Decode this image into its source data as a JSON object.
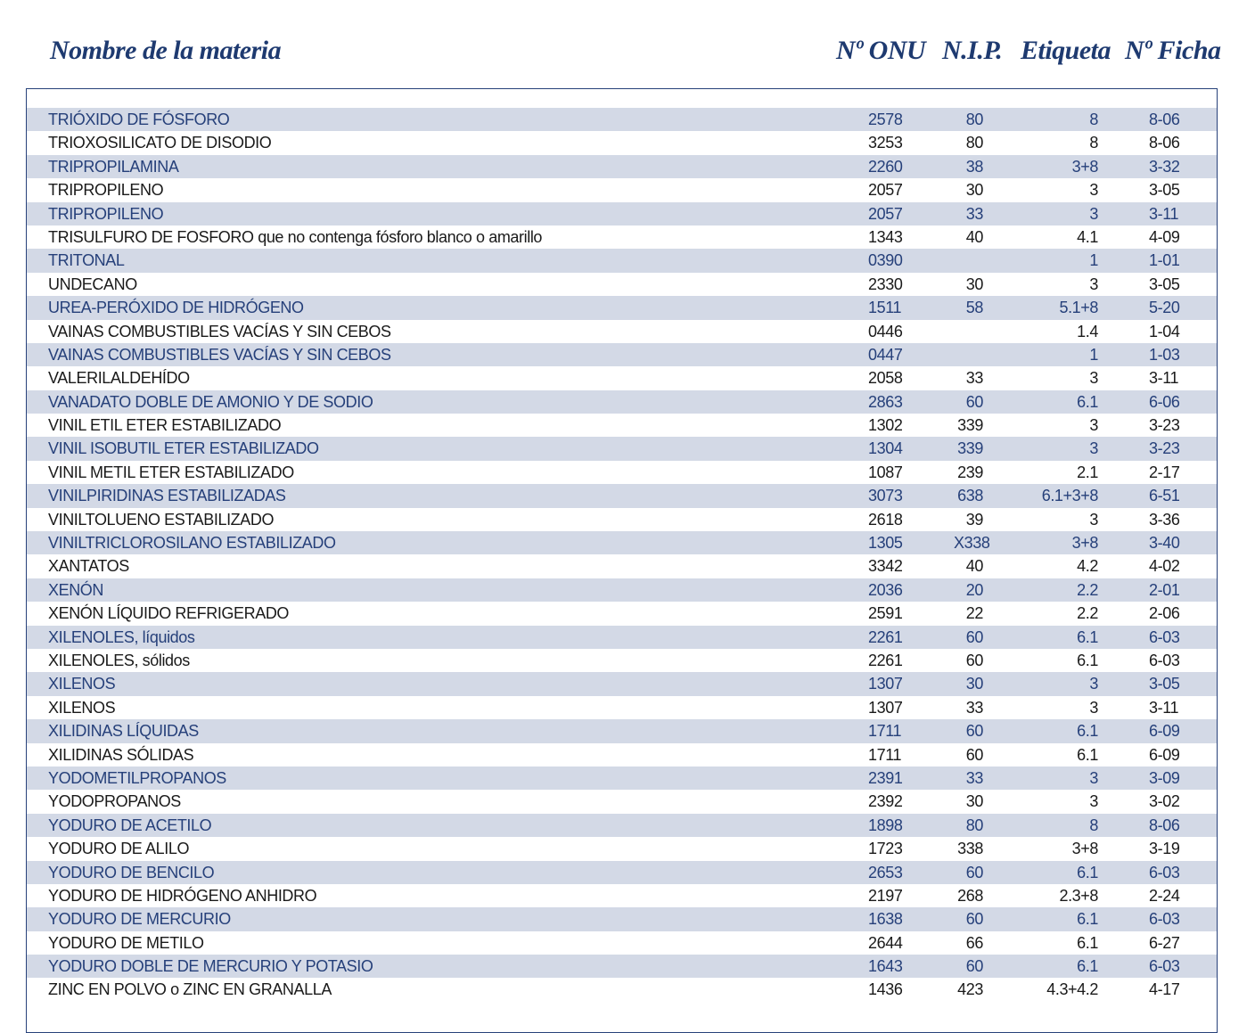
{
  "header": {
    "name": "Nombre de la materia",
    "onu": "Nº ONU",
    "nip": "N.I.P.",
    "etiqueta": "Etiqueta",
    "ficha": "Nº Ficha"
  },
  "rows": [
    {
      "name": "TRIÓXIDO DE FÓSFORO",
      "onu": "2578",
      "nip": "80",
      "etiqueta": "8",
      "ficha": "8-06"
    },
    {
      "name": "TRIOXOSILICATO DE DISODIO",
      "onu": "3253",
      "nip": "80",
      "etiqueta": "8",
      "ficha": "8-06"
    },
    {
      "name": "TRIPROPILAMINA",
      "onu": "2260",
      "nip": "38",
      "etiqueta": "3+8",
      "ficha": "3-32"
    },
    {
      "name": "TRIPROPILENO",
      "onu": "2057",
      "nip": "30",
      "etiqueta": "3",
      "ficha": "3-05"
    },
    {
      "name": "TRIPROPILENO",
      "onu": "2057",
      "nip": "33",
      "etiqueta": "3",
      "ficha": "3-11"
    },
    {
      "name": "TRISULFURO DE FOSFORO que no contenga fósforo blanco o amarillo",
      "onu": "1343",
      "nip": "40",
      "etiqueta": "4.1",
      "ficha": "4-09"
    },
    {
      "name": "TRITONAL",
      "onu": "0390",
      "nip": "",
      "etiqueta": "1",
      "ficha": "1-01"
    },
    {
      "name": "UNDECANO",
      "onu": "2330",
      "nip": "30",
      "etiqueta": "3",
      "ficha": "3-05"
    },
    {
      "name": "UREA-PERÓXIDO DE HIDRÓGENO",
      "onu": "1511",
      "nip": "58",
      "etiqueta": "5.1+8",
      "ficha": "5-20"
    },
    {
      "name": "VAINAS COMBUSTIBLES VACÍAS Y SIN CEBOS",
      "onu": "0446",
      "nip": "",
      "etiqueta": "1.4",
      "ficha": "1-04"
    },
    {
      "name": "VAINAS COMBUSTIBLES VACÍAS Y SIN CEBOS",
      "onu": "0447",
      "nip": "",
      "etiqueta": "1",
      "ficha": "1-03"
    },
    {
      "name": "VALERILALDEHÍDO",
      "onu": "2058",
      "nip": "33",
      "etiqueta": "3",
      "ficha": "3-11"
    },
    {
      "name": "VANADATO DOBLE DE AMONIO Y DE SODIO",
      "onu": "2863",
      "nip": "60",
      "etiqueta": "6.1",
      "ficha": "6-06"
    },
    {
      "name": "VINIL ETIL ETER ESTABILIZADO",
      "onu": "1302",
      "nip": "339",
      "etiqueta": "3",
      "ficha": "3-23"
    },
    {
      "name": "VINIL ISOBUTIL ETER ESTABILIZADO",
      "onu": "1304",
      "nip": "339",
      "etiqueta": "3",
      "ficha": "3-23"
    },
    {
      "name": "VINIL METIL ETER ESTABILIZADO",
      "onu": "1087",
      "nip": "239",
      "etiqueta": "2.1",
      "ficha": "2-17"
    },
    {
      "name": "VINILPIRIDINAS ESTABILIZADAS",
      "onu": "3073",
      "nip": "638",
      "etiqueta": "6.1+3+8",
      "ficha": "6-51"
    },
    {
      "name": "VINILTOLUENO ESTABILIZADO",
      "onu": "2618",
      "nip": "39",
      "etiqueta": "3",
      "ficha": "3-36"
    },
    {
      "name": "VINILTRICLOROSILANO ESTABILIZADO",
      "onu": "1305",
      "nip": "X338",
      "etiqueta": "3+8",
      "ficha": "3-40"
    },
    {
      "name": "XANTATOS",
      "onu": "3342",
      "nip": "40",
      "etiqueta": "4.2",
      "ficha": "4-02"
    },
    {
      "name": "XENÓN",
      "onu": "2036",
      "nip": "20",
      "etiqueta": "2.2",
      "ficha": "2-01"
    },
    {
      "name": "XENÓN LÍQUIDO REFRIGERADO",
      "onu": "2591",
      "nip": "22",
      "etiqueta": "2.2",
      "ficha": "2-06"
    },
    {
      "name": "XILENOLES, líquidos",
      "onu": "2261",
      "nip": "60",
      "etiqueta": "6.1",
      "ficha": "6-03"
    },
    {
      "name": "XILENOLES, sólidos",
      "onu": "2261",
      "nip": "60",
      "etiqueta": "6.1",
      "ficha": "6-03"
    },
    {
      "name": "XILENOS",
      "onu": "1307",
      "nip": "30",
      "etiqueta": "3",
      "ficha": "3-05"
    },
    {
      "name": "XILENOS",
      "onu": "1307",
      "nip": "33",
      "etiqueta": "3",
      "ficha": "3-11"
    },
    {
      "name": "XILIDINAS LÍQUIDAS",
      "onu": "1711",
      "nip": "60",
      "etiqueta": "6.1",
      "ficha": "6-09"
    },
    {
      "name": "XILIDINAS SÓLIDAS",
      "onu": "1711",
      "nip": "60",
      "etiqueta": "6.1",
      "ficha": "6-09"
    },
    {
      "name": "YODOMETILPROPANOS",
      "onu": "2391",
      "nip": "33",
      "etiqueta": "3",
      "ficha": "3-09"
    },
    {
      "name": "YODOPROPANOS",
      "onu": "2392",
      "nip": "30",
      "etiqueta": "3",
      "ficha": "3-02"
    },
    {
      "name": "YODURO DE ACETILO",
      "onu": "1898",
      "nip": "80",
      "etiqueta": "8",
      "ficha": "8-06"
    },
    {
      "name": "YODURO DE ALILO",
      "onu": "1723",
      "nip": "338",
      "etiqueta": "3+8",
      "ficha": "3-19"
    },
    {
      "name": "YODURO DE BENCILO",
      "onu": "2653",
      "nip": "60",
      "etiqueta": "6.1",
      "ficha": "6-03"
    },
    {
      "name": "YODURO DE HIDRÓGENO ANHIDRO",
      "onu": "2197",
      "nip": "268",
      "etiqueta": "2.3+8",
      "ficha": "2-24"
    },
    {
      "name": "YODURO DE MERCURIO",
      "onu": "1638",
      "nip": "60",
      "etiqueta": "6.1",
      "ficha": "6-03"
    },
    {
      "name": "YODURO DE METILO",
      "onu": "2644",
      "nip": "66",
      "etiqueta": "6.1",
      "ficha": "6-27"
    },
    {
      "name": "YODURO DOBLE DE MERCURIO Y POTASIO",
      "onu": "1643",
      "nip": "60",
      "etiqueta": "6.1",
      "ficha": "6-03"
    },
    {
      "name": "ZINC EN POLVO o ZINC EN GRANALLA",
      "onu": "1436",
      "nip": "423",
      "etiqueta": "4.3+4.2",
      "ficha": "4-17"
    }
  ]
}
